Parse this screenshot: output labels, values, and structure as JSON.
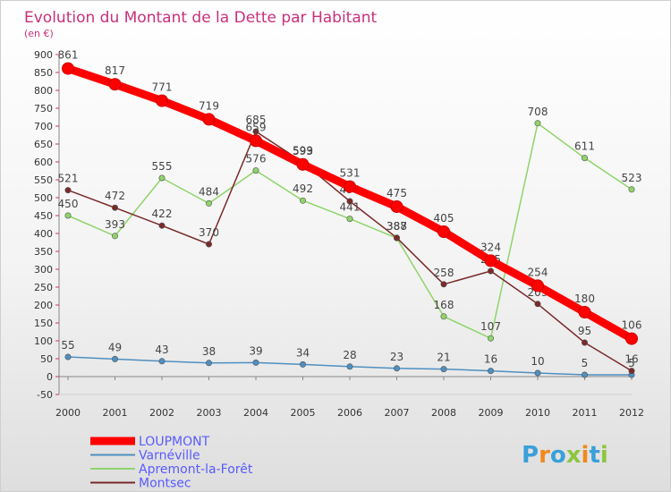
{
  "chart_data": {
    "type": "line",
    "title": "Evolution du Montant de la Dette par Habitant",
    "subtitle": "(en €)",
    "x": [
      "2000",
      "2001",
      "2002",
      "2003",
      "2004",
      "2005",
      "2006",
      "2007",
      "2008",
      "2009",
      "2010",
      "2011",
      "2012"
    ],
    "ylim": [
      -50,
      900
    ],
    "yticks": [
      -50,
      0,
      50,
      100,
      150,
      200,
      250,
      300,
      350,
      400,
      450,
      500,
      550,
      600,
      650,
      700,
      750,
      800,
      850,
      900
    ],
    "grid": false,
    "legend_position": "bottom-left",
    "series": [
      {
        "name": "LOUPMONT",
        "color": "#ff0000",
        "values": [
          861,
          817,
          771,
          719,
          659,
          593,
          531,
          475,
          405,
          324,
          254,
          180,
          106
        ]
      },
      {
        "name": "Varnéville",
        "color": "#4f8fc0",
        "values": [
          55,
          49,
          43,
          38,
          39,
          34,
          28,
          23,
          21,
          16,
          10,
          5,
          5
        ]
      },
      {
        "name": "Apremont-la-Forêt",
        "color": "#8fd46a",
        "values": [
          450,
          393,
          555,
          484,
          576,
          492,
          441,
          387,
          168,
          107,
          708,
          611,
          523
        ]
      },
      {
        "name": "Montsec",
        "color": "#7a2a2a",
        "values": [
          521,
          472,
          422,
          370,
          685,
          599,
          490,
          388,
          258,
          295,
          203,
          95,
          16
        ]
      }
    ]
  },
  "logo": {
    "text": "Proxiti"
  }
}
